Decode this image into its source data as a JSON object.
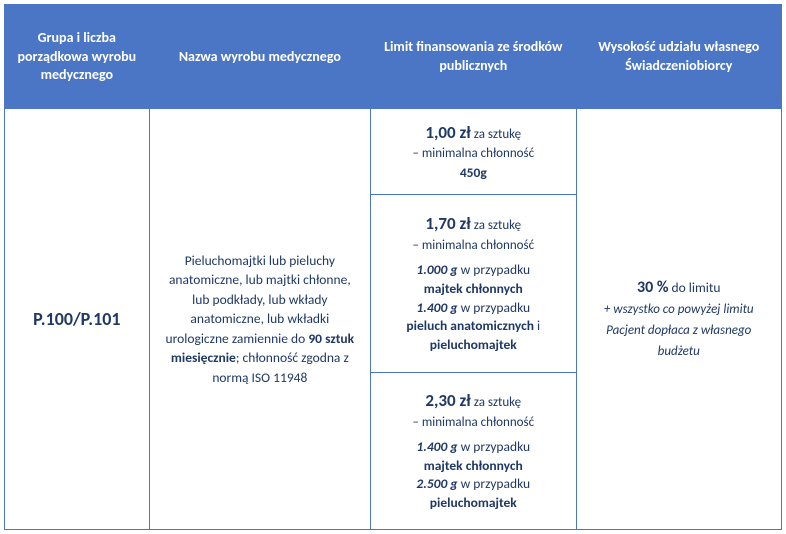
{
  "headers": {
    "col1": "Grupa i liczba porządkowa wyrobu medycznego",
    "col2": "Nazwa wyrobu medycznego",
    "col3": "Limit finansowania ze środków publicznych",
    "col4": "Wysokość udziału własnego Świadczeniobiorcy"
  },
  "group_code": "P.100/P.101",
  "product": {
    "line1": "Pieluchomajtki lub pieluchy anatomiczne, lub majtki chłonne, lub podkłady, lub wkłady anatomiczne, lub wkładki urologiczne zamiennie do",
    "bold1": "90 sztuk miesięcznie",
    "line2": "; chłonność zgodna z normą ISO 11948"
  },
  "limits": [
    {
      "price": "1,00 zł",
      "per": "za sztukę",
      "sub_prefix": "– minimalna chłonność",
      "bold_suffix": "450g"
    },
    {
      "price": "1,70 zł",
      "per": "za sztukę",
      "sub_prefix": "– minimalna chłonność",
      "rows": [
        {
          "g": "1.000 g",
          "mid": "w przypadku",
          "bold": "majtek chłonnych"
        },
        {
          "g": "1.400 g",
          "mid": "w przypadku",
          "bold1": "pieluch anatomicznych",
          "and": "i",
          "bold2": "pieluchomajtek"
        }
      ]
    },
    {
      "price": "2,30 zł",
      "per": "za sztukę",
      "sub_prefix": "– minimalna chłonność",
      "rows": [
        {
          "g": "1.400 g",
          "mid": "w przypadku",
          "bold": "majtek chłonnych"
        },
        {
          "g": "2.500 g",
          "mid": "w przypadku",
          "bold": "pieluchomajtek"
        }
      ]
    }
  ],
  "share": {
    "bold": "30 %",
    "suffix": "do limitu",
    "note": "+ wszystko co powyżej limitu Pacjent dopłaca z własnego budżetu"
  },
  "colors": {
    "header_bg": "#4a76c5",
    "header_text": "#ffffff",
    "border": "#4a76c5",
    "text": "#1f3864"
  }
}
